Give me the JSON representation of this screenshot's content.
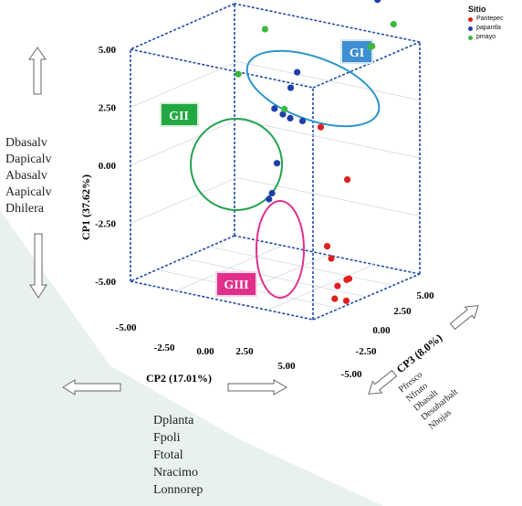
{
  "chart_data": {
    "type": "scatter",
    "subtype": "3d-scatter",
    "axes": {
      "cp1": {
        "label": "CP1 (37.62%)",
        "ticks": [
          "-5.00",
          "-2.50",
          "0.00",
          "2.50",
          "5.00"
        ],
        "range": [
          -5,
          5
        ]
      },
      "cp2": {
        "label": "CP2 (17.01%)",
        "ticks": [
          "-5.00",
          "-2.50",
          "0.00",
          "2.50",
          "5.00"
        ],
        "range": [
          -5,
          5
        ]
      },
      "cp3": {
        "label": "CP3 (8.0%)",
        "ticks": [
          "-5.00",
          "-2.50",
          "0.00",
          "2.50",
          "5.00"
        ],
        "range": [
          -5,
          5
        ]
      }
    },
    "legend": {
      "title": "Sitio",
      "placement": "top-right",
      "items": [
        {
          "name": "Pantepec",
          "color": "#e02020"
        },
        {
          "name": "papantla",
          "color": "#1f3fa8"
        },
        {
          "name": "pmayo",
          "color": "#3cb83c"
        }
      ]
    },
    "groups": [
      {
        "label": "GI",
        "fill": "#3f8fd2",
        "ellipse_color": "#2a96c8"
      },
      {
        "label": "GII",
        "fill": "#22a843",
        "ellipse_color": "#22a24a"
      },
      {
        "label": "GIII",
        "fill": "#e0308c",
        "ellipse_color": "#e0308c"
      }
    ],
    "series": [
      {
        "name": "Pantepec",
        "color": "#e02020",
        "points": [
          {
            "cp1": -1.0,
            "cp2": 2.2,
            "cp3": 3.0
          },
          {
            "cp1": 1.9,
            "cp2": 2.5,
            "cp3": 0.0
          },
          {
            "cp1": -3.0,
            "cp2": 3.2,
            "cp3": -0.6
          },
          {
            "cp1": -3.4,
            "cp2": 3.6,
            "cp3": -0.9
          },
          {
            "cp1": -4.5,
            "cp2": 4.0,
            "cp3": -1.0
          },
          {
            "cp1": -4.9,
            "cp2": 4.2,
            "cp3": -1.6
          },
          {
            "cp1": -4.2,
            "cp2": 4.4,
            "cp3": -0.6
          },
          {
            "cp1": -5.0,
            "cp2": 4.6,
            "cp3": -1.2
          },
          {
            "cp1": -4.0,
            "cp2": 4.8,
            "cp3": -1.5
          }
        ]
      },
      {
        "name": "papantla",
        "color": "#1f3fa8",
        "points": [
          {
            "cp1": 6.5,
            "cp2": 2.8,
            "cp3": 4.8
          },
          {
            "cp1": 4.2,
            "cp2": 1.5,
            "cp3": -0.5
          },
          {
            "cp1": 3.5,
            "cp2": 1.2,
            "cp3": -0.6
          },
          {
            "cp1": 2.4,
            "cp2": 0.2,
            "cp3": -0.4
          },
          {
            "cp1": 2.2,
            "cp2": 0.6,
            "cp3": -0.3
          },
          {
            "cp1": 2.1,
            "cp2": 1.0,
            "cp3": -0.3
          },
          {
            "cp1": 2.0,
            "cp2": 1.5,
            "cp3": 0.0
          },
          {
            "cp1": 0.3,
            "cp2": 0.8,
            "cp3": -1.2
          },
          {
            "cp1": -0.8,
            "cp2": 1.0,
            "cp3": -2.0
          },
          {
            "cp1": -1.2,
            "cp2": 0.6,
            "cp3": -1.6
          }
        ]
      },
      {
        "name": "pmayo",
        "color": "#3cb83c",
        "points": [
          {
            "cp1": 6.5,
            "cp2": 1.2,
            "cp3": -3.0
          },
          {
            "cp1": 4.2,
            "cp2": -0.5,
            "cp3": -2.6
          },
          {
            "cp1": 2.5,
            "cp2": 0.8,
            "cp3": -0.5
          },
          {
            "cp1": 6.0,
            "cp2": 4.5,
            "cp3": 3.4
          },
          {
            "cp1": 5.2,
            "cp2": 4.0,
            "cp3": 2.1
          },
          {
            "cp1": 5.3,
            "cp2": 4.2,
            "cp3": 1.9
          }
        ]
      }
    ],
    "variable_lists": {
      "cp1_direction": [
        "Dbasalv",
        "Dapicalv",
        "Abasalv",
        "Aapicalv",
        "Dhilera"
      ],
      "cp2_direction": [
        "Dplanta",
        "Fpoli",
        "Ftotal",
        "Nracimo",
        "Lonnorep"
      ],
      "cp3_direction": [
        "Pfresco",
        "Nfruto",
        "Dbasalt",
        "Desubarbalt",
        "Nhojas"
      ]
    }
  }
}
